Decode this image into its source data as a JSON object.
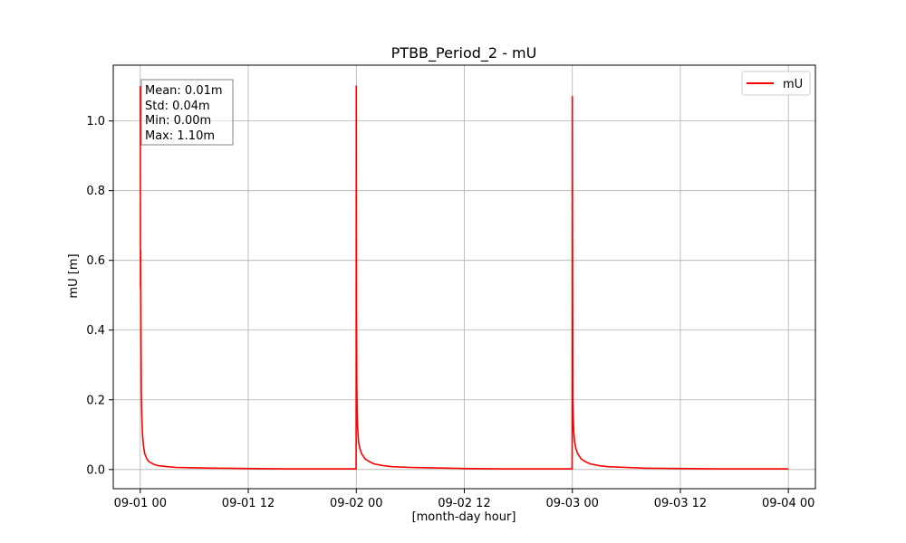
{
  "chart_data": {
    "type": "line",
    "title": "PTBB_Period_2 - mU",
    "xlabel": "[month-day hour]",
    "ylabel": "mU [m]",
    "xlim": [
      "2024-08-31T21:00",
      "2024-09-04T03:00"
    ],
    "ylim": [
      -0.055,
      1.16
    ],
    "x_ticks": [
      "09-01 00",
      "09-01 12",
      "09-02 00",
      "09-02 12",
      "09-03 00",
      "09-03 12",
      "09-04 00"
    ],
    "x_tick_hours": [
      0,
      12,
      24,
      36,
      48,
      60,
      72
    ],
    "y_ticks": [
      "0.0",
      "0.2",
      "0.4",
      "0.6",
      "0.8",
      "1.0"
    ],
    "y_tick_values": [
      0.0,
      0.2,
      0.4,
      0.6,
      0.8,
      1.0
    ],
    "grid": true,
    "legend_position": "top-right",
    "series": [
      {
        "name": "mU",
        "color": "#ff0000",
        "x_hours": [
          0,
          0.03,
          0.05,
          0.08,
          0.12,
          0.18,
          0.25,
          0.35,
          0.5,
          0.75,
          1,
          1.5,
          2,
          3,
          4,
          6,
          8,
          12,
          16,
          20,
          23.98,
          24,
          24.03,
          24.06,
          24.1,
          24.15,
          24.25,
          24.4,
          24.6,
          25,
          25.5,
          26,
          27,
          28,
          30,
          32,
          36,
          40,
          44,
          47.98,
          48,
          48.03,
          48.06,
          48.1,
          48.15,
          48.25,
          48.4,
          48.6,
          49,
          49.5,
          50,
          51,
          52,
          54,
          56,
          60,
          64,
          68,
          72
        ],
        "values": [
          1.1,
          0.52,
          0.63,
          0.4,
          0.22,
          0.15,
          0.1,
          0.07,
          0.045,
          0.03,
          0.022,
          0.015,
          0.011,
          0.008,
          0.006,
          0.005,
          0.004,
          0.003,
          0.002,
          0.002,
          0.002,
          1.1,
          0.45,
          0.24,
          0.16,
          0.12,
          0.08,
          0.06,
          0.045,
          0.03,
          0.022,
          0.016,
          0.011,
          0.008,
          0.006,
          0.005,
          0.003,
          0.002,
          0.002,
          0.002,
          1.07,
          0.55,
          0.2,
          0.15,
          0.11,
          0.08,
          0.06,
          0.045,
          0.03,
          0.022,
          0.016,
          0.011,
          0.008,
          0.006,
          0.004,
          0.003,
          0.002,
          0.002,
          0.002
        ]
      }
    ],
    "stats_box": [
      "Mean: 0.01m",
      "Std: 0.04m",
      "Min: 0.00m",
      "Max: 1.10m"
    ]
  }
}
